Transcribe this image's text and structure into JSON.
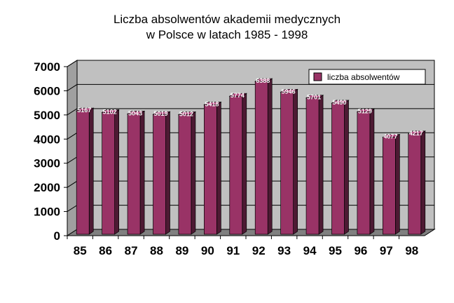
{
  "chart_data": {
    "type": "bar",
    "title_line1": "Liczba absolwentów akademii medycznych",
    "title_line2": "w Polsce w latach 1985 - 1998",
    "categories": [
      "85",
      "86",
      "87",
      "88",
      "89",
      "90",
      "91",
      "92",
      "93",
      "94",
      "95",
      "96",
      "97",
      "98"
    ],
    "series": [
      {
        "name": "liczba absolwentów",
        "color": "#993366",
        "values": [
          5167,
          5102,
          5043,
          5019,
          5012,
          5418,
          5774,
          6388,
          5946,
          5701,
          5490,
          5129,
          4077,
          4217
        ]
      }
    ],
    "yticks": [
      0,
      1000,
      2000,
      3000,
      4000,
      5000,
      6000,
      7000
    ],
    "ylim": [
      0,
      7000
    ],
    "legend_position": "top-right",
    "grid": true,
    "colors": {
      "plot_background": "#c0c0c0",
      "bar_front": "#993366",
      "bar_top": "#b3477f",
      "bar_side": "#4d1a33"
    }
  }
}
